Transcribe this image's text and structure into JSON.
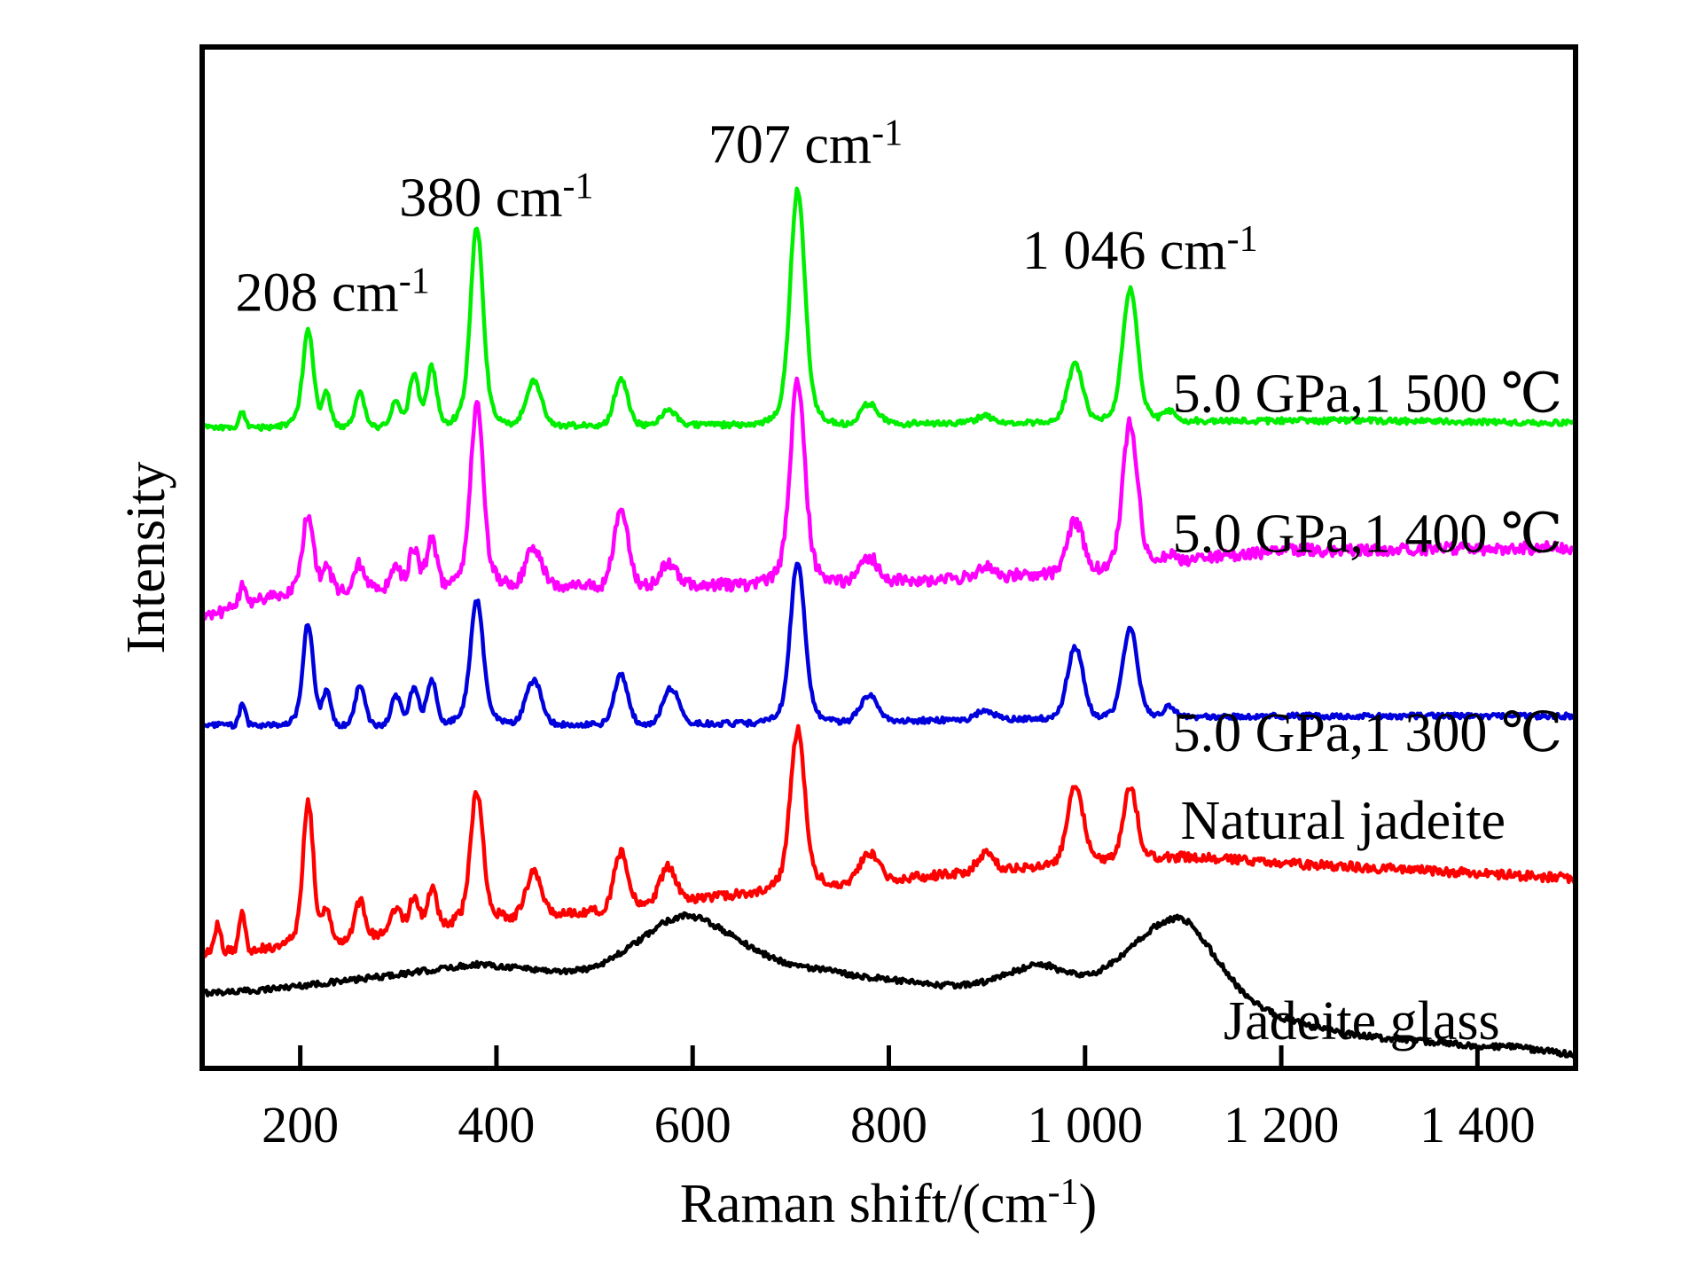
{
  "figure": {
    "background": "#ffffff",
    "frame_color": "#000000"
  },
  "chart_data": {
    "type": "line",
    "title": "",
    "xlabel": "Raman shift/(cm⁻¹)",
    "ylabel": "Intensity",
    "xlim": [
      100,
      1500
    ],
    "ylim": [
      0,
      1
    ],
    "grid": false,
    "legend_position": "inline-right",
    "x_ticks": [
      200,
      400,
      600,
      800,
      1000,
      1200,
      1400
    ],
    "x_tick_labels": [
      "200",
      "400",
      "600",
      "800",
      "1 000",
      "1 200",
      "1 400"
    ],
    "peak_annotations": [
      {
        "text": "208 cm⁻¹",
        "x": 233,
        "intensity": 0.76
      },
      {
        "text": "380 cm⁻¹",
        "x": 400,
        "intensity": 0.853
      },
      {
        "text": "707 cm⁻¹",
        "x": 715,
        "intensity": 0.905
      },
      {
        "text": "1 046 cm⁻¹",
        "x": 1056,
        "intensity": 0.801
      }
    ],
    "series": [
      {
        "name": "Jadeite glass",
        "color": "#000000",
        "noise": 0.0028,
        "label": {
          "x": 1282,
          "intensity": 0.047
        },
        "peaks": [],
        "baseline": [
          [
            100,
            0.074
          ],
          [
            150,
            0.076
          ],
          [
            200,
            0.081
          ],
          [
            250,
            0.086
          ],
          [
            300,
            0.092
          ],
          [
            340,
            0.097
          ],
          [
            380,
            0.102
          ],
          [
            420,
            0.099
          ],
          [
            450,
            0.096
          ],
          [
            470,
            0.095
          ],
          [
            490,
            0.097
          ],
          [
            510,
            0.104
          ],
          [
            530,
            0.115
          ],
          [
            550,
            0.128
          ],
          [
            570,
            0.143
          ],
          [
            590,
            0.15
          ],
          [
            610,
            0.146
          ],
          [
            630,
            0.136
          ],
          [
            650,
            0.124
          ],
          [
            670,
            0.113
          ],
          [
            690,
            0.105
          ],
          [
            710,
            0.1
          ],
          [
            730,
            0.097
          ],
          [
            760,
            0.092
          ],
          [
            800,
            0.087
          ],
          [
            840,
            0.082
          ],
          [
            870,
            0.081
          ],
          [
            900,
            0.085
          ],
          [
            925,
            0.094
          ],
          [
            945,
            0.101
          ],
          [
            955,
            0.102
          ],
          [
            965,
            0.1
          ],
          [
            980,
            0.094
          ],
          [
            995,
            0.091
          ],
          [
            1010,
            0.093
          ],
          [
            1030,
            0.104
          ],
          [
            1050,
            0.121
          ],
          [
            1070,
            0.138
          ],
          [
            1085,
            0.146
          ],
          [
            1095,
            0.147
          ],
          [
            1105,
            0.143
          ],
          [
            1115,
            0.133
          ],
          [
            1130,
            0.113
          ],
          [
            1145,
            0.093
          ],
          [
            1160,
            0.075
          ],
          [
            1180,
            0.06
          ],
          [
            1200,
            0.05
          ],
          [
            1230,
            0.041
          ],
          [
            1260,
            0.035
          ],
          [
            1300,
            0.03
          ],
          [
            1350,
            0.026
          ],
          [
            1400,
            0.022
          ],
          [
            1440,
            0.021
          ],
          [
            1470,
            0.017
          ],
          [
            1500,
            0.013
          ]
        ]
      },
      {
        "name": "Natural jadeite",
        "color": "#ff0000",
        "noise": 0.0045,
        "label": {
          "x": 1263,
          "intensity": 0.243
        },
        "peaks": [
          [
            116,
            0.026,
            3
          ],
          [
            141,
            0.039,
            3
          ],
          [
            208,
            0.122,
            5
          ],
          [
            208,
            0.017,
            12
          ],
          [
            227,
            0.03,
            4
          ],
          [
            261,
            0.036,
            5
          ],
          [
            298,
            0.026,
            5
          ],
          [
            316,
            0.033,
            5
          ],
          [
            334,
            0.039,
            5
          ],
          [
            380,
            0.11,
            6
          ],
          [
            380,
            0.018,
            14
          ],
          [
            438,
            0.043,
            8
          ],
          [
            527,
            0.054,
            7
          ],
          [
            575,
            0.035,
            8
          ],
          [
            707,
            0.135,
            7
          ],
          [
            707,
            0.02,
            16
          ],
          [
            780,
            0.028,
            9
          ],
          [
            898,
            0.017,
            8
          ],
          [
            990,
            0.074,
            8
          ],
          [
            1046,
            0.069,
            7
          ]
        ],
        "baseline": [
          [
            100,
            0.113
          ],
          [
            150,
            0.116
          ],
          [
            200,
            0.122
          ],
          [
            250,
            0.127
          ],
          [
            300,
            0.133
          ],
          [
            350,
            0.14
          ],
          [
            400,
            0.146
          ],
          [
            450,
            0.15
          ],
          [
            500,
            0.154
          ],
          [
            550,
            0.16
          ],
          [
            600,
            0.165
          ],
          [
            650,
            0.171
          ],
          [
            700,
            0.176
          ],
          [
            750,
            0.181
          ],
          [
            800,
            0.185
          ],
          [
            850,
            0.189
          ],
          [
            900,
            0.194
          ],
          [
            950,
            0.198
          ],
          [
            1000,
            0.204
          ],
          [
            1050,
            0.207
          ],
          [
            1100,
            0.207
          ],
          [
            1150,
            0.205
          ],
          [
            1200,
            0.201
          ],
          [
            1300,
            0.196
          ],
          [
            1400,
            0.191
          ],
          [
            1500,
            0.186
          ]
        ]
      },
      {
        "name": "5.0 GPa,1 300 ℃",
        "color": "#0000dd",
        "noise": 0.0026,
        "label": {
          "x": 1288,
          "intensity": 0.329
        },
        "peaks": [
          [
            141,
            0.02,
            3
          ],
          [
            208,
            0.088,
            5
          ],
          [
            208,
            0.012,
            12
          ],
          [
            227,
            0.03,
            4
          ],
          [
            261,
            0.039,
            5
          ],
          [
            298,
            0.029,
            5
          ],
          [
            316,
            0.035,
            5
          ],
          [
            334,
            0.043,
            5
          ],
          [
            380,
            0.1,
            6
          ],
          [
            380,
            0.022,
            14
          ],
          [
            438,
            0.043,
            8
          ],
          [
            527,
            0.048,
            7
          ],
          [
            578,
            0.035,
            8
          ],
          [
            707,
            0.14,
            7
          ],
          [
            707,
            0.018,
            16
          ],
          [
            780,
            0.026,
            9
          ],
          [
            898,
            0.009,
            8
          ],
          [
            990,
            0.07,
            8
          ],
          [
            1046,
            0.078,
            7
          ],
          [
            1046,
            0.011,
            14
          ],
          [
            1086,
            0.01,
            6
          ]
        ],
        "baseline": [
          [
            100,
            0.336
          ],
          [
            300,
            0.336
          ],
          [
            500,
            0.337
          ],
          [
            700,
            0.338
          ],
          [
            800,
            0.34
          ],
          [
            900,
            0.342
          ],
          [
            1000,
            0.343
          ],
          [
            1100,
            0.344
          ],
          [
            1200,
            0.345
          ],
          [
            1500,
            0.345
          ]
        ]
      },
      {
        "name": "5.0 GPa,1 400 ℃",
        "color": "#ff00ff",
        "noise": 0.006,
        "label": {
          "x": 1288,
          "intensity": 0.524
        },
        "peaks": [
          [
            141,
            0.017,
            3
          ],
          [
            208,
            0.065,
            5
          ],
          [
            208,
            0.012,
            12
          ],
          [
            227,
            0.024,
            4
          ],
          [
            261,
            0.024,
            5
          ],
          [
            298,
            0.019,
            5
          ],
          [
            316,
            0.039,
            5
          ],
          [
            334,
            0.048,
            5
          ],
          [
            380,
            0.148,
            6
          ],
          [
            380,
            0.03,
            14
          ],
          [
            438,
            0.039,
            8
          ],
          [
            527,
            0.078,
            7
          ],
          [
            575,
            0.022,
            8
          ],
          [
            707,
            0.17,
            7
          ],
          [
            707,
            0.028,
            16
          ],
          [
            780,
            0.024,
            9
          ],
          [
            898,
            0.01,
            8
          ],
          [
            990,
            0.049,
            8
          ],
          [
            1046,
            0.12,
            7
          ],
          [
            1046,
            0.02,
            14
          ],
          [
            1086,
            0.007,
            6
          ]
        ],
        "baseline": [
          [
            100,
            0.438
          ],
          [
            130,
            0.452
          ],
          [
            160,
            0.46
          ],
          [
            200,
            0.466
          ],
          [
            250,
            0.47
          ],
          [
            400,
            0.472
          ],
          [
            600,
            0.473
          ],
          [
            700,
            0.474
          ],
          [
            800,
            0.477
          ],
          [
            900,
            0.481
          ],
          [
            1000,
            0.487
          ],
          [
            1100,
            0.498
          ],
          [
            1200,
            0.507
          ],
          [
            1300,
            0.508
          ],
          [
            1400,
            0.509
          ],
          [
            1500,
            0.51
          ]
        ]
      },
      {
        "name": "5.0 GPa,1 500 ℃",
        "color": "#00ee00",
        "noise": 0.0028,
        "label": {
          "x": 1288,
          "intensity": 0.661
        },
        "peaks": [
          [
            141,
            0.016,
            3
          ],
          [
            208,
            0.08,
            5
          ],
          [
            208,
            0.015,
            12
          ],
          [
            227,
            0.03,
            4
          ],
          [
            261,
            0.032,
            5
          ],
          [
            298,
            0.025,
            5
          ],
          [
            316,
            0.051,
            5
          ],
          [
            334,
            0.058,
            5
          ],
          [
            380,
            0.165,
            6
          ],
          [
            380,
            0.03,
            14
          ],
          [
            438,
            0.044,
            8
          ],
          [
            527,
            0.044,
            7
          ],
          [
            575,
            0.014,
            8
          ],
          [
            707,
            0.2,
            7
          ],
          [
            707,
            0.03,
            16
          ],
          [
            780,
            0.02,
            9
          ],
          [
            898,
            0.007,
            8
          ],
          [
            990,
            0.056,
            8
          ],
          [
            1046,
            0.11,
            7
          ],
          [
            1046,
            0.02,
            14
          ],
          [
            1086,
            0.009,
            6
          ]
        ],
        "baseline": [
          [
            100,
            0.627
          ],
          [
            200,
            0.628
          ],
          [
            400,
            0.629
          ],
          [
            600,
            0.63
          ],
          [
            700,
            0.63
          ],
          [
            800,
            0.631
          ],
          [
            900,
            0.632
          ],
          [
            1000,
            0.633
          ],
          [
            1100,
            0.634
          ],
          [
            1300,
            0.634
          ],
          [
            1500,
            0.632
          ]
        ]
      }
    ]
  }
}
